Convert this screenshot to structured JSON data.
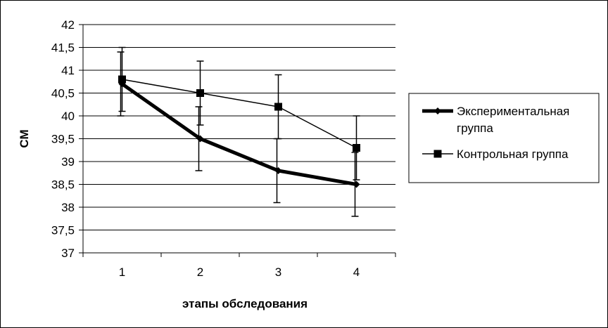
{
  "chart_data": {
    "type": "line",
    "title": "",
    "xlabel": "этапы обследования",
    "ylabel": "СМ",
    "categories": [
      "1",
      "2",
      "3",
      "4"
    ],
    "ylim": [
      37,
      42
    ],
    "ystep": 0.5,
    "yticks": [
      "37",
      "37,5",
      "38",
      "38,5",
      "39",
      "39,5",
      "40",
      "40,5",
      "41",
      "41,5",
      "42"
    ],
    "grid": "horizontal",
    "legend_position": "right",
    "series": [
      {
        "name": "Экспериментальная группа",
        "name_lines": [
          "Экспериментальная",
          "группа"
        ],
        "marker": "diamond",
        "line_width": "thick",
        "color": "#000000",
        "values": [
          40.7,
          39.5,
          38.8,
          38.5
        ],
        "error_low": [
          40.0,
          38.8,
          38.1,
          37.8
        ],
        "error_high": [
          41.4,
          40.2,
          39.5,
          39.2
        ]
      },
      {
        "name": "Контрольная группа",
        "name_lines": [
          "Контрольная группа"
        ],
        "marker": "square",
        "line_width": "thin",
        "color": "#000000",
        "values": [
          40.8,
          40.5,
          40.2,
          39.3
        ],
        "error_low": [
          40.1,
          39.8,
          39.5,
          38.6
        ],
        "error_high": [
          41.5,
          41.2,
          40.9,
          40.0
        ]
      }
    ]
  }
}
